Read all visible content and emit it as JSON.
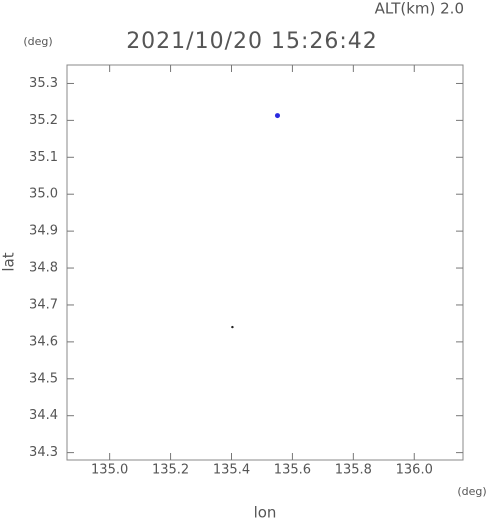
{
  "chart_data": {
    "type": "scatter",
    "title": "2021/10/20 15:26:42",
    "subtitle": "ALT(km) 2.0",
    "x_label": "lon",
    "y_label": "lat",
    "x_unit": "(deg)",
    "y_unit": "(deg)",
    "x": [
      135.551,
      135.403
    ],
    "values": [
      35.213,
      34.64
    ],
    "colors": [
      "#2a2ae0",
      "#222222"
    ],
    "xlim": [
      134.86,
      136.16
    ],
    "ylim": [
      34.28,
      35.35
    ],
    "xticks": [
      {
        "value": 135.0,
        "label": "135.0"
      },
      135.2,
      135.4,
      135.6,
      135.8,
      {
        "value": 136.0,
        "label": "136.0"
      }
    ],
    "yticks": [
      34.3,
      34.4,
      34.5,
      34.6,
      34.7,
      34.8,
      34.9,
      {
        "value": 35.0,
        "label": "35.0"
      },
      35.1,
      35.2,
      35.3
    ],
    "grid": false
  }
}
